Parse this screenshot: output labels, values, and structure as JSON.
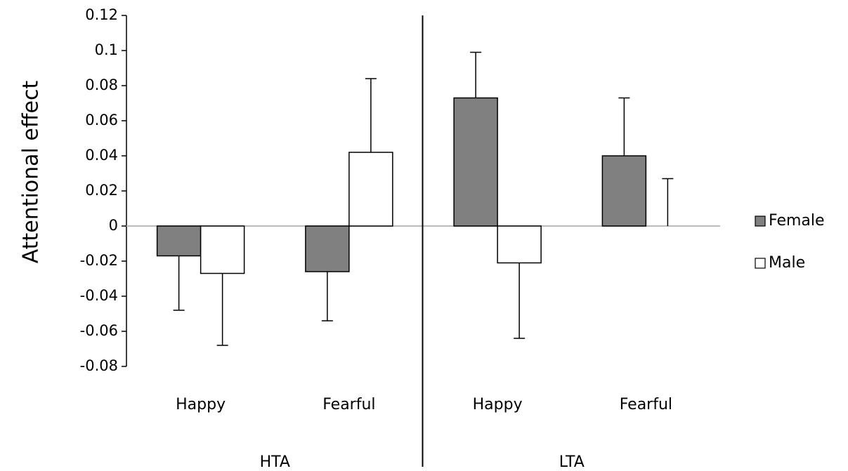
{
  "chart_data": {
    "type": "bar",
    "y_label": "Attentional effect",
    "categories": [
      "Happy",
      "Fearful",
      "Happy",
      "Fearful"
    ],
    "groups": [
      "HTA",
      "LTA"
    ],
    "series": [
      {
        "name": "Female",
        "color": "#808080",
        "values": [
          -0.017,
          -0.026,
          0.073,
          0.04
        ],
        "errors": [
          0.031,
          0.028,
          0.026,
          0.033
        ]
      },
      {
        "name": "Male",
        "color": "#ffffff",
        "values": [
          -0.027,
          0.042,
          -0.021,
          0
        ],
        "errors": [
          0.041,
          0.042,
          0.043,
          0.027
        ]
      }
    ],
    "ylim": [
      -0.08,
      0.12
    ],
    "yticks": [
      -0.08,
      -0.06,
      -0.04,
      -0.02,
      0,
      0.02,
      0.04,
      0.06,
      0.08,
      0.1,
      0.12
    ],
    "legend": "right"
  }
}
